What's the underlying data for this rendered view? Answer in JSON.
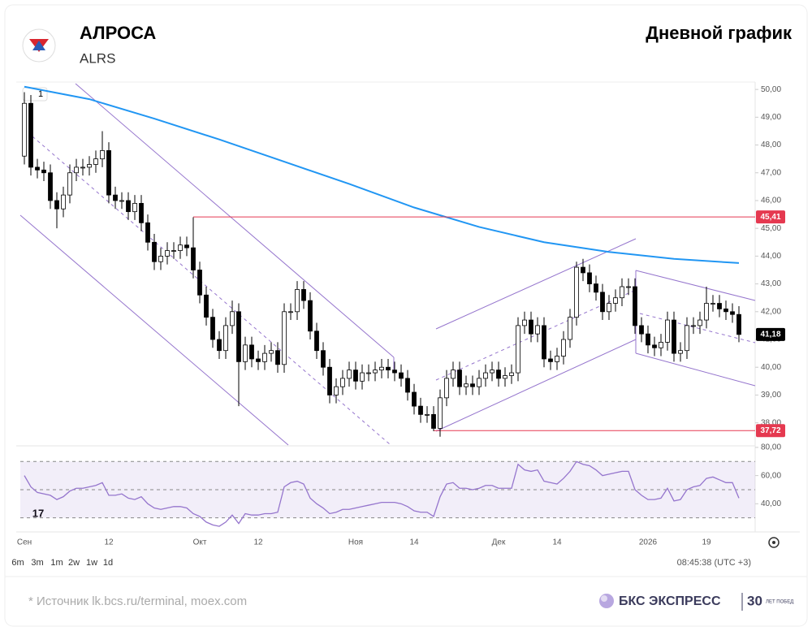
{
  "header": {
    "title": "АЛРОСА",
    "ticker": "ALRS",
    "chart_label": "Дневной график"
  },
  "toolbar": {
    "indicator_badge": "1",
    "timeframes": [
      "6m",
      "3m",
      "1m",
      "2w",
      "1w",
      "1d"
    ],
    "time": "08:45:38 (UTC +3)"
  },
  "footer": {
    "source": "*  Источник lk.bcs.ru/terminal, moex.com",
    "brand": "БКС ЭКСПРЕСС",
    "anniversary": "30",
    "anniversary_text": "ЛЕТ ПОБЕД"
  },
  "chart_data": {
    "type": "candlestick",
    "up_color": "#ffffff",
    "down_color": "#000000",
    "categories": [
      "Сен",
      null,
      null,
      null,
      null,
      null,
      null,
      null,
      null,
      null,
      null,
      null,
      null,
      "12",
      null,
      null,
      null,
      null,
      null,
      null,
      null,
      null,
      null,
      null,
      null,
      null,
      null,
      "Окт",
      null,
      null,
      null,
      null,
      null,
      null,
      null,
      null,
      "12",
      null,
      null,
      null,
      null,
      null,
      null,
      null,
      null,
      null,
      null,
      null,
      null,
      null,
      null,
      "Ноя",
      null,
      null,
      null,
      null,
      null,
      null,
      null,
      null,
      "14",
      null,
      null,
      null,
      null,
      null,
      null,
      null,
      null,
      null,
      null,
      null,
      null,
      "Дек",
      null,
      null,
      null,
      null,
      null,
      null,
      null,
      null,
      "14",
      null,
      null,
      null,
      null,
      null,
      null,
      null,
      null,
      null,
      null,
      null,
      null,
      null,
      "2026",
      null,
      null,
      null,
      null,
      null,
      null,
      null,
      null,
      "19",
      null,
      null,
      null,
      null,
      null
    ],
    "open": [
      47.6,
      49.5,
      47.2,
      47.1,
      47.0,
      46.0,
      45.7,
      46.2,
      47.0,
      47.2,
      47.2,
      47.3,
      47.5,
      47.8,
      46.2,
      46.0,
      46.0,
      45.6,
      45.9,
      45.2,
      44.5,
      43.8,
      44.0,
      44.2,
      44.2,
      44.4,
      44.3,
      43.5,
      42.6,
      41.8,
      41.0,
      40.6,
      41.5,
      42.0,
      40.2,
      40.8,
      40.3,
      40.2,
      40.5,
      40.6,
      40.1,
      42.0,
      42.0,
      42.8,
      42.4,
      41.3,
      40.6,
      40.0,
      39.0,
      39.3,
      39.6,
      39.9,
      39.5,
      39.8,
      39.8,
      39.9,
      40.0,
      39.9,
      39.8,
      39.6,
      39.1,
      38.6,
      38.3,
      38.3,
      37.8,
      38.9,
      39.6,
      39.9,
      39.3,
      39.4,
      39.3,
      39.6,
      39.8,
      39.9,
      39.6,
      39.7,
      39.8,
      41.5,
      41.7,
      41.2,
      41.5,
      40.3,
      40.2,
      40.4,
      41.0,
      41.8,
      43.6,
      43.4,
      43.0,
      42.7,
      42.0,
      42.3,
      42.5,
      42.9,
      42.9,
      41.5,
      41.2,
      40.8,
      40.7,
      40.9,
      41.7,
      40.5,
      40.6,
      41.5,
      41.5,
      41.7,
      42.3,
      42.3,
      42.1,
      42.0,
      41.9
    ],
    "high": [
      49.9,
      49.8,
      47.5,
      47.4,
      47.3,
      46.3,
      46.5,
      47.3,
      47.5,
      47.5,
      47.6,
      47.8,
      48.5,
      48.1,
      46.5,
      46.3,
      46.3,
      46.2,
      46.2,
      45.5,
      44.8,
      44.3,
      44.5,
      44.5,
      44.7,
      44.7,
      45.4,
      43.8,
      42.9,
      42.1,
      41.3,
      41.8,
      42.4,
      42.3,
      41.1,
      41.1,
      40.6,
      40.8,
      40.9,
      40.9,
      42.3,
      42.3,
      43.1,
      43.1,
      42.7,
      41.6,
      40.9,
      40.3,
      39.6,
      39.9,
      40.2,
      40.2,
      40.1,
      40.1,
      40.2,
      40.3,
      40.3,
      40.2,
      40.1,
      39.9,
      39.4,
      38.9,
      38.6,
      38.6,
      39.2,
      39.9,
      40.2,
      40.2,
      39.7,
      39.7,
      39.9,
      40.1,
      40.2,
      40.2,
      40.0,
      40.1,
      41.8,
      42.0,
      42.0,
      41.8,
      41.8,
      40.6,
      40.7,
      41.3,
      42.1,
      43.8,
      43.9,
      43.7,
      43.3,
      43.0,
      42.6,
      42.8,
      43.2,
      43.2,
      43.2,
      41.8,
      41.5,
      41.1,
      41.2,
      42.0,
      42.0,
      40.9,
      41.8,
      41.8,
      42.0,
      42.9,
      42.6,
      42.6,
      42.4,
      42.3,
      42.2
    ],
    "low": [
      47.3,
      46.9,
      46.8,
      46.7,
      45.7,
      45.0,
      45.4,
      45.9,
      46.7,
      46.9,
      46.9,
      47.0,
      47.2,
      45.9,
      45.7,
      45.7,
      45.3,
      45.3,
      44.9,
      44.2,
      43.5,
      43.5,
      43.7,
      43.9,
      43.9,
      44.0,
      43.2,
      42.3,
      41.5,
      40.7,
      40.3,
      40.3,
      41.2,
      38.6,
      39.9,
      40.0,
      39.9,
      39.9,
      40.2,
      39.8,
      39.8,
      41.7,
      41.7,
      42.1,
      41.0,
      40.3,
      39.7,
      38.7,
      38.7,
      39.0,
      39.3,
      39.2,
      39.2,
      39.5,
      39.5,
      39.6,
      39.6,
      39.5,
      39.3,
      38.8,
      38.3,
      38.0,
      38.0,
      37.7,
      37.5,
      38.6,
      39.3,
      39.0,
      39.0,
      39.0,
      39.0,
      39.3,
      39.5,
      39.3,
      39.3,
      39.4,
      39.5,
      41.2,
      40.9,
      40.9,
      40.0,
      39.9,
      39.9,
      40.1,
      40.7,
      41.5,
      43.1,
      42.7,
      42.4,
      41.7,
      41.7,
      42.0,
      42.2,
      42.6,
      41.2,
      40.9,
      40.5,
      40.4,
      40.4,
      40.6,
      40.2,
      40.2,
      40.3,
      41.2,
      41.2,
      41.4,
      42.0,
      41.8,
      41.7,
      41.6,
      40.9
    ],
    "close": [
      49.5,
      47.2,
      47.1,
      47.0,
      46.0,
      45.7,
      46.2,
      47.0,
      47.2,
      47.2,
      47.3,
      47.5,
      47.8,
      46.2,
      46.0,
      46.0,
      45.6,
      45.9,
      45.2,
      44.5,
      43.8,
      44.0,
      44.2,
      44.2,
      44.4,
      44.3,
      43.5,
      42.6,
      41.8,
      41.0,
      40.6,
      41.5,
      42.0,
      40.2,
      40.8,
      40.3,
      40.2,
      40.5,
      40.6,
      40.1,
      42.0,
      42.0,
      42.8,
      42.4,
      41.3,
      40.6,
      40.0,
      39.0,
      39.3,
      39.6,
      39.9,
      39.5,
      39.8,
      39.8,
      39.9,
      40.0,
      39.9,
      39.8,
      39.6,
      39.1,
      38.6,
      38.3,
      38.3,
      37.8,
      38.9,
      39.6,
      39.9,
      39.3,
      39.4,
      39.3,
      39.6,
      39.8,
      39.9,
      39.6,
      39.7,
      39.8,
      41.5,
      41.7,
      41.2,
      41.5,
      40.3,
      40.2,
      40.4,
      41.0,
      41.8,
      43.6,
      43.4,
      43.0,
      42.7,
      42.0,
      42.3,
      42.5,
      42.9,
      42.9,
      41.5,
      41.2,
      40.8,
      40.7,
      40.9,
      41.7,
      40.5,
      40.6,
      41.5,
      41.5,
      41.7,
      42.3,
      42.3,
      42.1,
      42.0,
      41.9,
      41.18
    ],
    "last_label": "41,18",
    "ylim": [
      37.2,
      50.15
    ],
    "yticks": [
      {
        "value": 38,
        "label": "38,00"
      },
      {
        "value": 39,
        "label": "39,00"
      },
      {
        "value": 40,
        "label": "40,00"
      },
      {
        "value": 41,
        "label": "41,00"
      },
      {
        "value": 42,
        "label": "42,00"
      },
      {
        "value": 43,
        "label": "43,00"
      },
      {
        "value": 44,
        "label": "44,00"
      },
      {
        "value": 45,
        "label": "45,00"
      },
      {
        "value": 46,
        "label": "46,00"
      },
      {
        "value": 47,
        "label": "47,00"
      },
      {
        "value": 48,
        "label": "48,00"
      },
      {
        "value": 49,
        "label": "49,00"
      },
      {
        "value": 50,
        "label": "50,00"
      }
    ],
    "hlines": [
      {
        "value": 45.41,
        "label": "45,41",
        "start": 26,
        "color": "#e53950"
      },
      {
        "value": 37.72,
        "label": "37,72",
        "start": 63,
        "color": "#e53950"
      }
    ],
    "ma": {
      "color": "#2196f3",
      "x": [
        0,
        10,
        20,
        30,
        40,
        50,
        60,
        70,
        80,
        90,
        100,
        110
      ],
      "values": [
        50.1,
        49.65,
        48.95,
        48.2,
        47.4,
        46.6,
        45.75,
        45.05,
        44.5,
        44.15,
        43.9,
        43.75
      ]
    },
    "rsi": {
      "color": "#9575cd",
      "ylim": [
        22.9,
        81.1
      ],
      "yticks": [
        {
          "value": 40,
          "label": "40,00"
        },
        {
          "value": 60,
          "label": "60,00"
        },
        {
          "value": 80,
          "label": "80,00"
        }
      ],
      "levels": [
        30,
        50,
        70
      ],
      "values": [
        60,
        52,
        48,
        47,
        46,
        43,
        45,
        49,
        51,
        51,
        52,
        53,
        55,
        46,
        46,
        47,
        44,
        43,
        45,
        40,
        37,
        36,
        37,
        38,
        38,
        37,
        33,
        31,
        27,
        25,
        24,
        27,
        32,
        26,
        33,
        32,
        32,
        33,
        33,
        34,
        52,
        55,
        56,
        54,
        44,
        40,
        37,
        33,
        34,
        36,
        36,
        37,
        38,
        39,
        40,
        41,
        41,
        41,
        40,
        38,
        35,
        34,
        34,
        31,
        45,
        54,
        55,
        51,
        51,
        50,
        51,
        53,
        53,
        51,
        51,
        51,
        68,
        64,
        63,
        64,
        56,
        55,
        54,
        58,
        63,
        70,
        68,
        67,
        64,
        60,
        61,
        62,
        63,
        63,
        50,
        46,
        43,
        43,
        44,
        51,
        42,
        43,
        50,
        52,
        53,
        58,
        59,
        57,
        55,
        55,
        44
      ]
    }
  }
}
